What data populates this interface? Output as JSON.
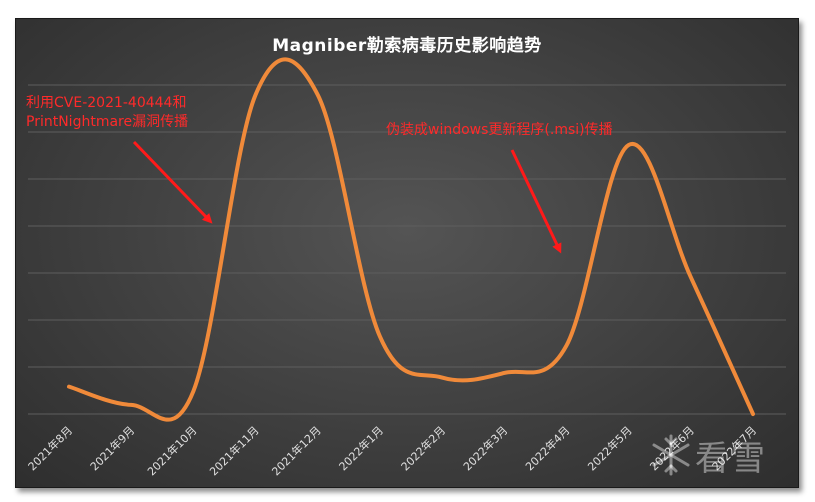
{
  "chart_data": {
    "type": "line",
    "title": "Magniber勒索病毒历史影响趋势",
    "categories": [
      "2021年8月",
      "2021年9月",
      "2021年10月",
      "2021年11月",
      "2021年12月",
      "2022年1月",
      "2022年2月",
      "2022年3月",
      "2022年4月",
      "2022年5月",
      "2022年6月",
      "2022年7月"
    ],
    "series": [
      {
        "values": [
          0.6,
          0.2,
          0.5,
          7.0,
          7.0,
          1.7,
          0.8,
          0.9,
          1.5,
          5.9,
          3.0,
          0.0
        ]
      }
    ],
    "ylim": [
      0,
      7.5
    ],
    "smooth": true,
    "grid": true,
    "line_color": "#f08a3a",
    "annotations": [
      {
        "text_lines": [
          "利用CVE-2021-40444和",
          "PrintNightmare漏洞传播"
        ],
        "color": "#ff2a2a"
      },
      {
        "text_lines": [
          "伪装成windows更新程序(.msi)传播"
        ],
        "color": "#ff2a2a"
      }
    ]
  },
  "watermark": {
    "text": "看雪",
    "icon": "snowflake-icon"
  }
}
